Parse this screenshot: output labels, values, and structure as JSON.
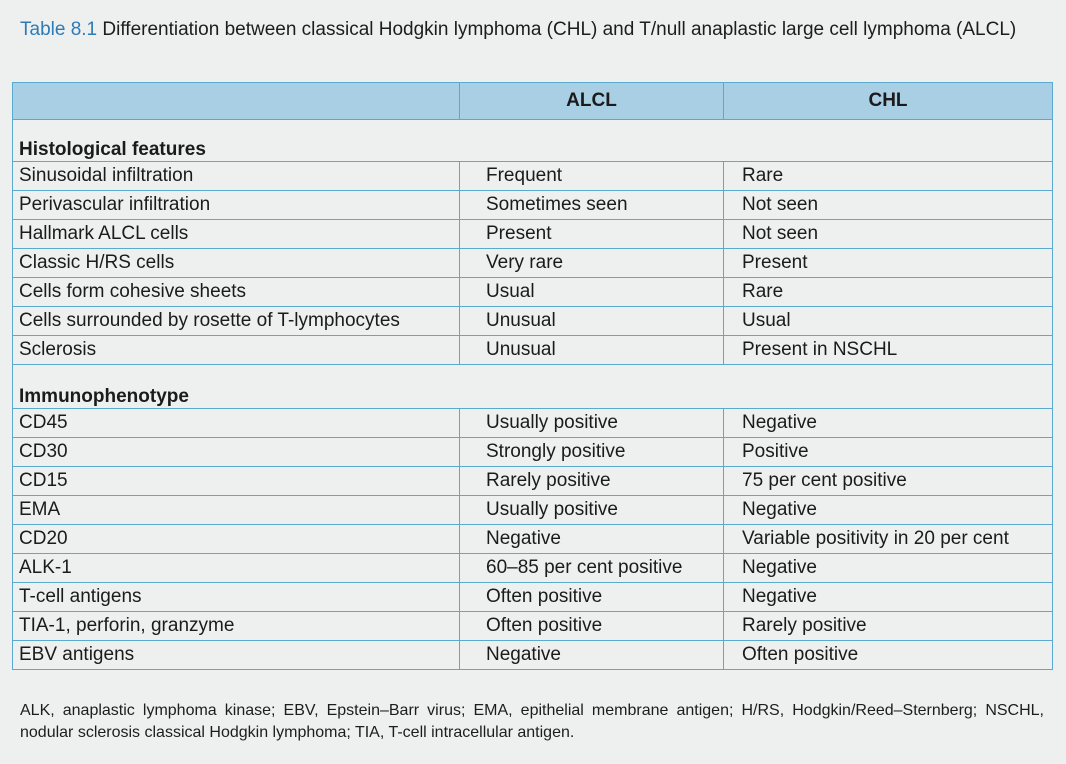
{
  "caption": {
    "label": "Table 8.1",
    "text": "Differentiation between classical Hodgkin lymphoma (CHL) and T/null anaplastic large cell lymphoma (ALCL)"
  },
  "table": {
    "headers": [
      "",
      "ALCL",
      "CHL"
    ],
    "sections": [
      {
        "title": "Histological features",
        "rows": [
          [
            "Sinusoidal infiltration",
            "Frequent",
            "Rare"
          ],
          [
            "Perivascular infiltration",
            "Sometimes seen",
            "Not seen"
          ],
          [
            "Hallmark ALCL cells",
            "Present",
            "Not seen"
          ],
          [
            "Classic H/RS cells",
            "Very rare",
            "Present"
          ],
          [
            "Cells form cohesive sheets",
            "Usual",
            "Rare"
          ],
          [
            "Cells surrounded by rosette of T-lymphocytes",
            "Unusual",
            "Usual"
          ],
          [
            "Sclerosis",
            "Unusual",
            "Present in NSCHL"
          ]
        ]
      },
      {
        "title": "Immunophenotype",
        "rows": [
          [
            "CD45",
            "Usually positive",
            "Negative"
          ],
          [
            "CD30",
            "Strongly positive",
            "Positive"
          ],
          [
            "CD15",
            "Rarely positive",
            "75 per cent positive"
          ],
          [
            "EMA",
            "Usually positive",
            "Negative"
          ],
          [
            "CD20",
            "Negative",
            "Variable positivity in 20 per cent"
          ],
          [
            "ALK-1",
            "60–85 per cent positive",
            "Negative"
          ],
          [
            "T-cell antigens",
            "Often positive",
            "Negative"
          ],
          [
            "TIA-1, perforin, granzyme",
            "Often positive",
            "Rarely positive"
          ],
          [
            "EBV antigens",
            "Negative",
            "Often positive"
          ]
        ]
      }
    ]
  },
  "footnote": "ALK, anaplastic lymphoma kinase; EBV, Epstein–Barr virus; EMA, epithelial membrane antigen; H/RS, Hodgkin/Reed–Sternberg; NSCHL, nodular sclerosis classical Hodgkin lymphoma; TIA, T-cell intracellular antigen.",
  "colors": {
    "caption_label": "#2e7bb6",
    "header_bg": "#a9cfe4",
    "border": "#5aa9cf",
    "page_bg": "#eeefef"
  }
}
